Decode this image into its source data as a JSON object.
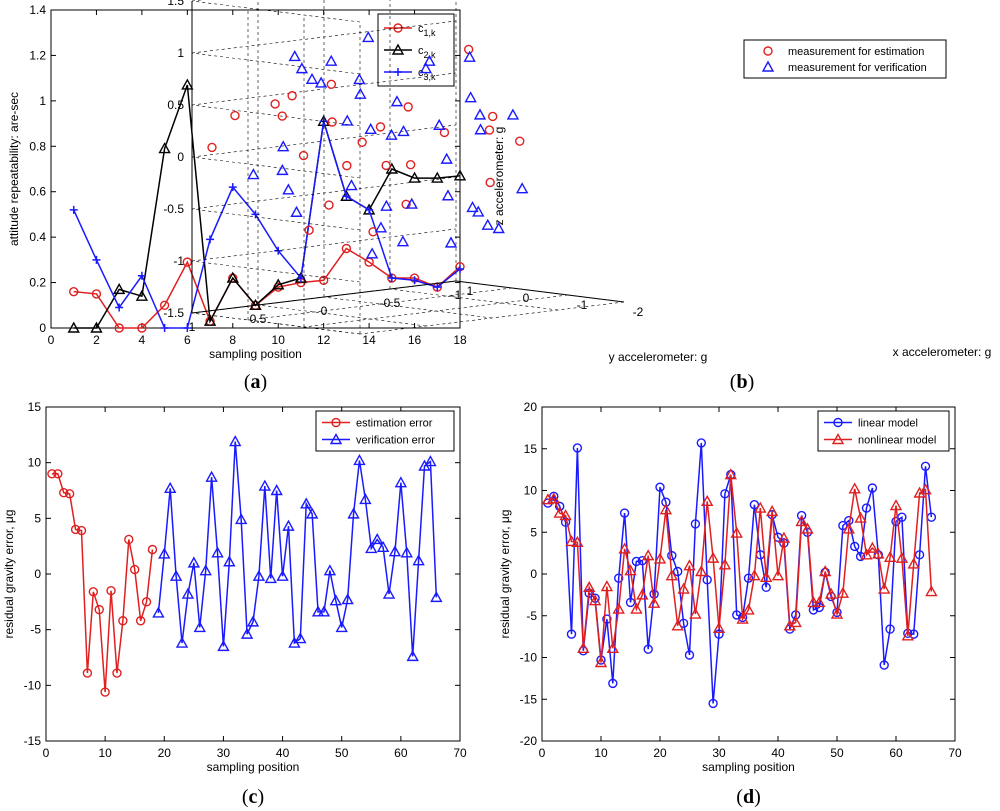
{
  "chart_data": [
    {
      "id": "a",
      "type": "line",
      "caption": "a",
      "xlabel": "sampling position",
      "ylabel": "attitude repeatability: are-sec",
      "xlim": [
        0,
        18
      ],
      "ylim": [
        0,
        1.4
      ],
      "xticks": [
        0,
        2,
        4,
        6,
        8,
        10,
        12,
        14,
        16,
        18
      ],
      "yticks": [
        0,
        0.2,
        0.4,
        0.6,
        0.8,
        1,
        1.2,
        1.4
      ],
      "x": [
        1,
        2,
        3,
        4,
        5,
        6,
        7,
        8,
        9,
        10,
        11,
        12,
        13,
        14,
        15,
        16,
        17,
        18
      ],
      "legend_position": "top-right",
      "series": [
        {
          "name": "c1,k",
          "label_base": "c",
          "label_sub": "1,k",
          "color": "#e02020",
          "marker": "circle",
          "values": [
            0.16,
            0.15,
            0.0,
            0.0,
            0.1,
            0.29,
            0.03,
            0.22,
            0.1,
            0.18,
            0.2,
            0.21,
            0.35,
            0.29,
            0.22,
            0.22,
            0.18,
            0.27
          ]
        },
        {
          "name": "c2,k",
          "label_base": "c",
          "label_sub": "2,k",
          "color": "#000000",
          "marker": "triangle",
          "values": [
            0.0,
            0.0,
            0.17,
            0.14,
            0.79,
            1.07,
            0.03,
            0.22,
            0.1,
            0.19,
            0.22,
            0.91,
            0.58,
            0.52,
            0.7,
            0.66,
            0.66,
            0.67
          ]
        },
        {
          "name": "c3,k",
          "label_base": "c",
          "label_sub": "3,k",
          "color": "#1a1aff",
          "marker": "plus",
          "values": [
            0.52,
            0.3,
            0.09,
            0.23,
            0.0,
            0.0,
            0.39,
            0.62,
            0.5,
            0.34,
            0.22,
            0.91,
            0.58,
            0.52,
            0.22,
            0.21,
            0.18,
            0.26
          ]
        }
      ]
    },
    {
      "id": "b",
      "type": "scatter",
      "caption": "b",
      "xlabel": "x accelerometer: g",
      "ylabel": "y accelerometer: g",
      "zlabel": "z accelerometer: g",
      "xlim": [
        -2,
        1
      ],
      "ylim": [
        -1,
        1
      ],
      "zlim": [
        -1.5,
        1.5
      ],
      "xticks": [
        -2,
        -1,
        0,
        1
      ],
      "yticks": [
        -1,
        -0.5,
        0,
        0.5,
        1
      ],
      "zticks": [
        -1.5,
        -1,
        -0.5,
        0,
        0.5,
        1,
        1.5
      ],
      "legend_position": "top-right",
      "series": [
        {
          "name": "measurement for estimation",
          "color": "#e02020",
          "marker": "circle",
          "points": [
            [
              -0.56,
              0.6,
              0.38
            ],
            [
              -0.31,
              0.5,
              0.71
            ],
            [
              -0.34,
              0.81,
              0.65
            ],
            [
              -0.81,
              0.34,
              0.31
            ],
            [
              -0.86,
              0.5,
              0.19
            ],
            [
              -0.78,
              0.91,
              0.12
            ],
            [
              -0.74,
              -0.54,
              0.27
            ],
            [
              -0.57,
              -0.43,
              0.92
            ],
            [
              -0.28,
              -0.94,
              -0.06
            ],
            [
              -0.14,
              0.8,
              0.44
            ],
            [
              0.27,
              0.68,
              0.51
            ],
            [
              0.61,
              0.84,
              0.4
            ],
            [
              0.69,
              0.98,
              0.11
            ],
            [
              -0.81,
              0.13,
              0.47
            ],
            [
              -0.42,
              -0.31,
              0.13
            ],
            [
              -0.87,
              -0.46,
              0.16
            ],
            [
              -0.61,
              0.51,
              -0.05
            ],
            [
              -1.17,
              0.45,
              -0.02
            ],
            [
              -0.22,
              0.48,
              -0.46
            ],
            [
              -0.5,
              -0.02,
              -0.13
            ],
            [
              -0.6,
              -0.58,
              -0.38
            ],
            [
              -0.36,
              0.69,
              -0.66
            ],
            [
              -1.22,
              0.32,
              -0.41
            ],
            [
              -0.89,
              0.43,
              -0.68
            ]
          ]
        },
        {
          "name": "measurement for verification",
          "color": "#1a1aff",
          "marker": "triangle",
          "points": [
            [
              -0.59,
              0.62,
              0.97
            ],
            [
              -0.53,
              0.74,
              0.81
            ],
            [
              -0.42,
              0.77,
              0.91
            ],
            [
              -0.08,
              0.68,
              0.99
            ],
            [
              -0.78,
              0.42,
              1.18
            ],
            [
              -0.45,
              0.34,
              0.6
            ],
            [
              -0.81,
              0.5,
              0.79
            ],
            [
              -1.01,
              0.3,
              0.56
            ],
            [
              -0.93,
              0.02,
              0.9
            ],
            [
              -0.54,
              -0.45,
              0.84
            ],
            [
              0.18,
              0.37,
              0.67
            ],
            [
              -0.3,
              -0.22,
              0.75
            ],
            [
              -0.24,
              0.35,
              0.33
            ],
            [
              -0.77,
              -0.36,
              0.48
            ],
            [
              -0.68,
              -0.16,
              0.24
            ],
            [
              0.47,
              0.76,
              -0.17
            ],
            [
              -0.11,
              0.78,
              0.14
            ],
            [
              -0.89,
              -0.38,
              0.32
            ],
            [
              0.24,
              -0.28,
              0.1
            ],
            [
              -1.03,
              -0.57,
              0.3
            ],
            [
              -1.13,
              0.55,
              0.34
            ],
            [
              -0.3,
              0.04,
              0.15
            ],
            [
              -0.24,
              -0.66,
              0.09
            ],
            [
              -0.74,
              0.53,
              -0.23
            ],
            [
              0.14,
              0.68,
              -0.12
            ],
            [
              -0.79,
              -0.17,
              -0.08
            ],
            [
              0.41,
              0.52,
              -0.35
            ],
            [
              -0.44,
              0.18,
              -0.71
            ],
            [
              -1.18,
              0.26,
              -0.42
            ],
            [
              -0.28,
              0.07,
              -0.53
            ],
            [
              -0.45,
              -0.51,
              -0.62
            ],
            [
              -0.81,
              0.17,
              -0.82
            ],
            [
              -1.12,
              -0.04,
              -0.39
            ],
            [
              -1.03,
              -0.64,
              -0.42
            ],
            [
              -0.6,
              -0.49,
              -0.65
            ],
            [
              -0.51,
              -0.6,
              -0.8
            ],
            [
              -0.23,
              0.73,
              -0.49
            ],
            [
              -0.49,
              -0.33,
              -0.93
            ],
            [
              -0.47,
              -0.7,
              -0.85
            ],
            [
              -0.59,
              0.31,
              -0.93
            ]
          ]
        }
      ]
    },
    {
      "id": "c",
      "type": "line",
      "caption": "c",
      "xlabel": "sampling position",
      "ylabel": "residual gravity error, μg",
      "xlim": [
        0,
        70
      ],
      "ylim": [
        -15,
        15
      ],
      "xticks": [
        0,
        10,
        20,
        30,
        40,
        50,
        60,
        70
      ],
      "yticks": [
        -15,
        -10,
        -5,
        0,
        5,
        10,
        15
      ],
      "legend_position": "top-right",
      "series": [
        {
          "name": "estimation error",
          "color": "#e02020",
          "marker": "circle",
          "x": [
            1,
            2,
            3,
            4,
            5,
            6,
            7,
            8,
            9,
            10,
            11,
            12,
            13,
            14,
            15,
            16,
            17,
            18
          ],
          "values": [
            9.0,
            9.0,
            7.3,
            7.2,
            4.0,
            3.9,
            -8.9,
            -1.6,
            -3.2,
            -10.6,
            -1.5,
            -8.9,
            -4.2,
            3.1,
            0.4,
            -4.2,
            -2.5,
            2.2
          ]
        },
        {
          "name": "verification error",
          "color": "#1a1aff",
          "marker": "triangle",
          "x": [
            19,
            20,
            21,
            22,
            23,
            24,
            25,
            26,
            27,
            28,
            29,
            30,
            31,
            32,
            33,
            34,
            35,
            36,
            37,
            38,
            39,
            40,
            41,
            42,
            43,
            44,
            45,
            46,
            47,
            48,
            49,
            50,
            51,
            52,
            53,
            54,
            55,
            56,
            57,
            58,
            59,
            60,
            61,
            62,
            63,
            64,
            65,
            66
          ],
          "values": [
            -3.5,
            1.8,
            7.7,
            -0.2,
            -6.2,
            -1.8,
            1.0,
            -4.8,
            0.3,
            8.7,
            1.9,
            -6.5,
            1.1,
            11.9,
            4.9,
            -5.4,
            -4.3,
            -0.2,
            7.9,
            -0.4,
            7.5,
            -0.2,
            4.3,
            -6.2,
            -5.8,
            6.3,
            5.4,
            -3.4,
            -3.4,
            0.3,
            -2.4,
            -4.8,
            -2.3,
            5.4,
            10.2,
            6.7,
            2.3,
            3.1,
            2.4,
            -1.8,
            2.0,
            8.2,
            1.9,
            -7.4,
            1.2,
            9.7,
            10.1,
            -2.1
          ]
        }
      ]
    },
    {
      "id": "d",
      "type": "line",
      "caption": "d",
      "xlabel": "sampling position",
      "ylabel": "residual gravity error, μg",
      "xlim": [
        0,
        70
      ],
      "ylim": [
        -20,
        20
      ],
      "xticks": [
        0,
        10,
        20,
        30,
        40,
        50,
        60,
        70
      ],
      "yticks": [
        -20,
        -15,
        -10,
        -5,
        0,
        5,
        10,
        15,
        20
      ],
      "legend_position": "top-right",
      "series": [
        {
          "name": "linear model",
          "color": "#1a1aff",
          "marker": "circle",
          "x": [
            1,
            2,
            3,
            4,
            5,
            6,
            7,
            8,
            9,
            10,
            11,
            12,
            13,
            14,
            15,
            16,
            17,
            18,
            19,
            20,
            21,
            22,
            23,
            24,
            25,
            26,
            27,
            28,
            29,
            30,
            31,
            32,
            33,
            34,
            35,
            36,
            37,
            38,
            39,
            40,
            41,
            42,
            43,
            44,
            45,
            46,
            47,
            48,
            49,
            50,
            51,
            52,
            53,
            54,
            55,
            56,
            57,
            58,
            59,
            60,
            61,
            62,
            63,
            64,
            65,
            66
          ],
          "values": [
            8.5,
            9.3,
            8.1,
            6.2,
            -7.2,
            15.1,
            -9.2,
            -2.3,
            -2.9,
            -10.3,
            -5.4,
            -13.1,
            -0.5,
            7.3,
            -3.4,
            1.5,
            1.6,
            -9.0,
            -2.4,
            10.4,
            8.6,
            2.2,
            0.3,
            -5.9,
            -9.7,
            6.0,
            15.7,
            -0.7,
            -15.5,
            -7.2,
            9.6,
            11.9,
            -4.9,
            -5.2,
            -0.5,
            8.3,
            2.3,
            -1.6,
            7.1,
            4.4,
            3.7,
            -6.6,
            -4.9,
            7.0,
            5.0,
            -4.3,
            -4.0,
            0.2,
            -2.7,
            -4.6,
            5.8,
            6.4,
            3.3,
            2.1,
            7.9,
            10.3,
            2.3,
            -10.9,
            -6.6,
            6.3,
            6.8,
            -7.1,
            -7.2,
            2.3,
            12.9,
            6.8
          ]
        },
        {
          "name": "nonlinear model",
          "color": "#e02020",
          "marker": "triangle",
          "x": [
            1,
            2,
            3,
            4,
            5,
            6,
            7,
            8,
            9,
            10,
            11,
            12,
            13,
            14,
            15,
            16,
            17,
            18,
            19,
            20,
            21,
            22,
            23,
            24,
            25,
            26,
            27,
            28,
            29,
            30,
            31,
            32,
            33,
            34,
            35,
            36,
            37,
            38,
            39,
            40,
            41,
            42,
            43,
            44,
            45,
            46,
            47,
            48,
            49,
            50,
            51,
            52,
            53,
            54,
            55,
            56,
            57,
            58,
            59,
            60,
            61,
            62,
            63,
            64,
            65,
            66
          ],
          "values": [
            8.9,
            9.0,
            7.3,
            7.0,
            3.9,
            3.8,
            -8.9,
            -1.6,
            -3.2,
            -10.6,
            -1.5,
            -8.9,
            -4.2,
            3.0,
            0.4,
            -4.2,
            -2.5,
            2.2,
            -3.5,
            1.8,
            7.7,
            -0.2,
            -6.2,
            -1.8,
            1.0,
            -4.8,
            0.3,
            8.7,
            1.9,
            -6.5,
            1.1,
            11.9,
            4.9,
            -5.4,
            -4.3,
            -0.2,
            7.9,
            -0.4,
            7.5,
            -0.2,
            4.3,
            -6.2,
            -5.8,
            6.3,
            5.4,
            -3.4,
            -3.4,
            0.3,
            -2.4,
            -4.8,
            -2.3,
            5.4,
            10.2,
            6.7,
            2.3,
            3.1,
            2.4,
            -1.8,
            2.0,
            8.2,
            1.9,
            -7.4,
            1.2,
            9.7,
            10.1,
            -2.1
          ]
        }
      ]
    }
  ]
}
